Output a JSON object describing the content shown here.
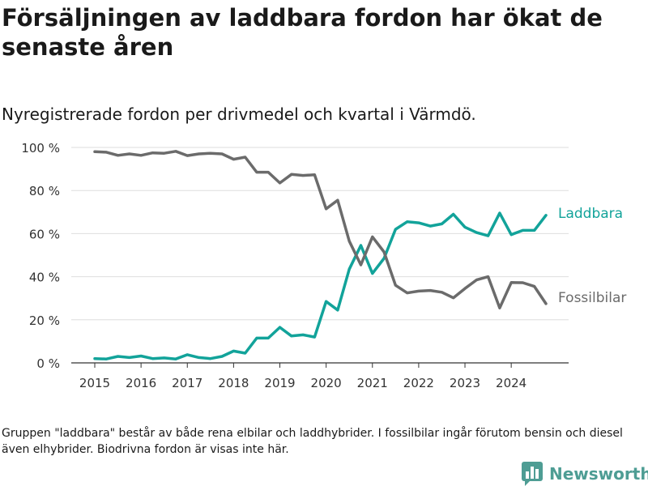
{
  "title": "Försäljningen av laddbara fordon har ökat de senaste åren",
  "subtitle": "Nyregistrerade fordon per drivmedel och kvartal i Värmdö.",
  "footnote": "Gruppen \"laddbara\" består av både rena elbilar och laddhybrider. I fossilbilar ingår förutom bensin och diesel även elhybrider. Biodrivna fordon är visas inte här.",
  "brand": {
    "name": "Newsworthy",
    "logo_icon": "bar-chart-logo-icon",
    "color": "#4e9d94"
  },
  "chart_data": {
    "type": "line",
    "title": "Försäljningen av laddbara fordon har ökat de senaste åren",
    "subtitle": "Nyregistrerade fordon per drivmedel och kvartal i Värmdö.",
    "xlabel": "",
    "ylabel": "",
    "ylim": [
      0,
      100
    ],
    "yticks": [
      0,
      20,
      40,
      60,
      80,
      100
    ],
    "ytick_labels": [
      "0 %",
      "20 %",
      "40 %",
      "60 %",
      "80 %",
      "100 %"
    ],
    "xticks": [
      2015,
      2016,
      2017,
      2018,
      2019,
      2020,
      2021,
      2022,
      2023,
      2024
    ],
    "xtick_labels": [
      "2015",
      "2016",
      "2017",
      "2018",
      "2019",
      "2020",
      "2021",
      "2022",
      "2023",
      "2024"
    ],
    "xlim": [
      2015,
      2024.75
    ],
    "grid": "horizontal",
    "x": [
      2015,
      2015.25,
      2015.5,
      2015.75,
      2016,
      2016.25,
      2016.5,
      2016.75,
      2017,
      2017.25,
      2017.5,
      2017.75,
      2018,
      2018.25,
      2018.5,
      2018.75,
      2019,
      2019.25,
      2019.5,
      2019.75,
      2020,
      2020.25,
      2020.5,
      2020.75,
      2021,
      2021.25,
      2021.5,
      2021.75,
      2022,
      2022.25,
      2022.5,
      2022.75,
      2023,
      2023.25,
      2023.5,
      2023.75,
      2024,
      2024.25,
      2024.5,
      2024.75
    ],
    "series": [
      {
        "name": "Laddbara",
        "color": "#12a39a",
        "values": [
          2,
          1.8,
          3,
          2.5,
          3.2,
          2,
          2.3,
          1.8,
          3.8,
          2.5,
          2,
          3,
          5.5,
          4.5,
          11.5,
          11.5,
          16.5,
          12.5,
          13,
          12,
          28.5,
          24.5,
          43.5,
          54.5,
          41.5,
          48.5,
          62,
          65.5,
          65,
          63.5,
          64.5,
          69,
          63,
          60.5,
          59,
          69.5,
          59.5,
          61.5,
          61.5,
          68.5
        ]
      },
      {
        "name": "Fossilbilar",
        "color": "#6b6b6b",
        "values": [
          98,
          97.8,
          96.3,
          97,
          96.3,
          97.5,
          97.3,
          98.2,
          96.2,
          97,
          97.3,
          97,
          94.5,
          95.5,
          88.5,
          88.5,
          83.5,
          87.5,
          87,
          87.3,
          71.5,
          75.5,
          56.5,
          45.5,
          58.5,
          51.5,
          36,
          32.5,
          33.3,
          33.6,
          32.8,
          30.2,
          34.5,
          38.5,
          40,
          25.5,
          37.3,
          37.2,
          35.5,
          27.5
        ]
      }
    ]
  }
}
